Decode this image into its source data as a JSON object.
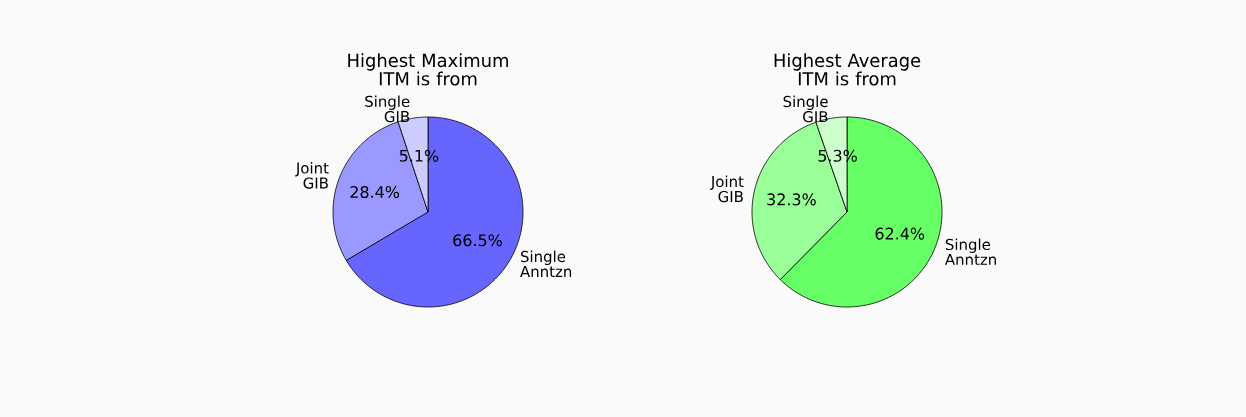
{
  "chart_data": [
    {
      "type": "pie",
      "title": "Highest Maximum ITM is from",
      "categories": [
        "Single Anntzn",
        "Joint GIB",
        "Single GIB"
      ],
      "values": [
        66.5,
        28.4,
        5.1
      ],
      "value_labels": [
        "66.5%",
        "28.4%",
        "5.1%"
      ],
      "colors": [
        "#6666ff",
        "#9999ff",
        "#ccccff"
      ]
    },
    {
      "type": "pie",
      "title": "Highest Average ITM is from",
      "categories": [
        "Single Anntzn",
        "Joint GIB",
        "Single GIB"
      ],
      "values": [
        62.4,
        32.3,
        5.3
      ],
      "value_labels": [
        "62.4%",
        "32.3%",
        "5.3%"
      ],
      "colors": [
        "#66ff66",
        "#99ff99",
        "#ccffcc"
      ]
    }
  ]
}
